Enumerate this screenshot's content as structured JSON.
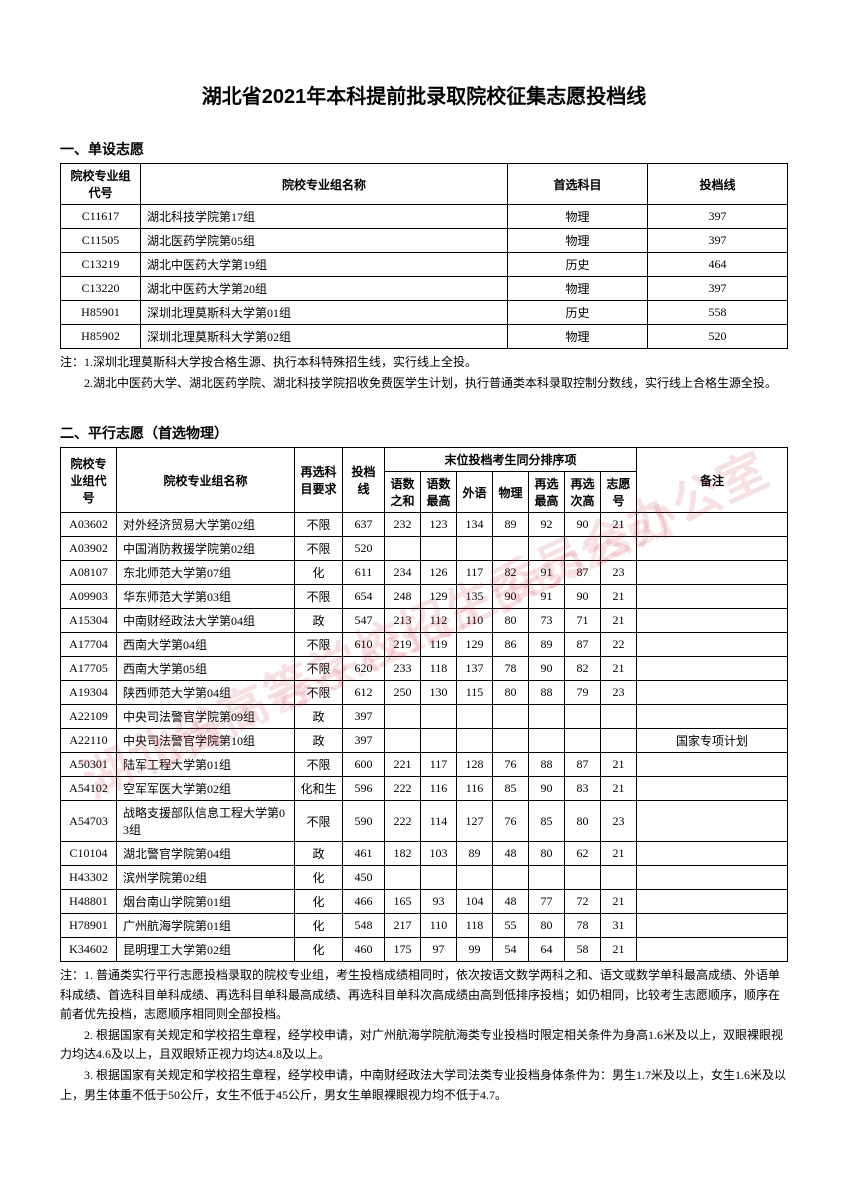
{
  "title": "湖北省2021年本科提前批录取院校征集志愿投档线",
  "watermark1": "湖北省高等学校招生委员会办公室",
  "watermark2": "网址 ：zsxx.e21.cn【HBSZSB】",
  "section1": {
    "heading": "一、单设志愿",
    "columns": [
      "院校专业组代号",
      "院校专业组名称",
      "首选科目",
      "投档线"
    ],
    "rows": [
      [
        "C11617",
        "湖北科技学院第17组",
        "物理",
        "397"
      ],
      [
        "C11505",
        "湖北医药学院第05组",
        "物理",
        "397"
      ],
      [
        "C13219",
        "湖北中医药大学第19组",
        "历史",
        "464"
      ],
      [
        "C13220",
        "湖北中医药大学第20组",
        "物理",
        "397"
      ],
      [
        "H85901",
        "深圳北理莫斯科大学第01组",
        "历史",
        "558"
      ],
      [
        "H85902",
        "深圳北理莫斯科大学第02组",
        "物理",
        "520"
      ]
    ],
    "note1": "注：1.深圳北理莫斯科大学按合格生源、执行本科特殊招生线，实行线上全投。",
    "note2": "2.湖北中医药大学、湖北医药学院、湖北科技学院招收免费医学生计划，执行普通类本科录取控制分数线，实行线上合格生源全投。"
  },
  "section2": {
    "heading": "二、平行志愿（首选物理）",
    "header_top": {
      "code": "院校专业组代号",
      "name": "院校专业组名称",
      "req": "再选科目要求",
      "score": "投档线",
      "rank_group": "末位投档考生同分排序项",
      "remark": "备注"
    },
    "header_sub": [
      "语数之和",
      "语数最高",
      "外语",
      "物理",
      "再选最高",
      "再选次高",
      "志愿号"
    ],
    "rows": [
      [
        "A03602",
        "对外经济贸易大学第02组",
        "不限",
        "637",
        "232",
        "123",
        "134",
        "89",
        "92",
        "90",
        "21",
        ""
      ],
      [
        "A03902",
        "中国消防救援学院第02组",
        "不限",
        "520",
        "",
        "",
        "",
        "",
        "",
        "",
        "",
        ""
      ],
      [
        "A08107",
        "东北师范大学第07组",
        "化",
        "611",
        "234",
        "126",
        "117",
        "82",
        "91",
        "87",
        "23",
        ""
      ],
      [
        "A09903",
        "华东师范大学第03组",
        "不限",
        "654",
        "248",
        "129",
        "135",
        "90",
        "91",
        "90",
        "21",
        ""
      ],
      [
        "A15304",
        "中南财经政法大学第04组",
        "政",
        "547",
        "213",
        "112",
        "110",
        "80",
        "73",
        "71",
        "21",
        ""
      ],
      [
        "A17704",
        "西南大学第04组",
        "不限",
        "610",
        "219",
        "119",
        "129",
        "86",
        "89",
        "87",
        "22",
        ""
      ],
      [
        "A17705",
        "西南大学第05组",
        "不限",
        "620",
        "233",
        "118",
        "137",
        "78",
        "90",
        "82",
        "21",
        ""
      ],
      [
        "A19304",
        "陕西师范大学第04组",
        "不限",
        "612",
        "250",
        "130",
        "115",
        "80",
        "88",
        "79",
        "23",
        ""
      ],
      [
        "A22109",
        "中央司法警官学院第09组",
        "政",
        "397",
        "",
        "",
        "",
        "",
        "",
        "",
        "",
        ""
      ],
      [
        "A22110",
        "中央司法警官学院第10组",
        "政",
        "397",
        "",
        "",
        "",
        "",
        "",
        "",
        "",
        "国家专项计划"
      ],
      [
        "A50301",
        "陆军工程大学第01组",
        "不限",
        "600",
        "221",
        "117",
        "128",
        "76",
        "88",
        "87",
        "21",
        ""
      ],
      [
        "A54102",
        "空军军医大学第02组",
        "化和生",
        "596",
        "222",
        "116",
        "116",
        "85",
        "90",
        "83",
        "21",
        ""
      ],
      [
        "A54703",
        "战略支援部队信息工程大学第03组",
        "不限",
        "590",
        "222",
        "114",
        "127",
        "76",
        "85",
        "80",
        "23",
        ""
      ],
      [
        "C10104",
        "湖北警官学院第04组",
        "政",
        "461",
        "182",
        "103",
        "89",
        "48",
        "80",
        "62",
        "21",
        ""
      ],
      [
        "H43302",
        "滨州学院第02组",
        "化",
        "450",
        "",
        "",
        "",
        "",
        "",
        "",
        "",
        ""
      ],
      [
        "H48801",
        "烟台南山学院第01组",
        "化",
        "466",
        "165",
        "93",
        "104",
        "48",
        "77",
        "72",
        "21",
        ""
      ],
      [
        "H78901",
        "广州航海学院第01组",
        "化",
        "548",
        "217",
        "110",
        "118",
        "55",
        "80",
        "78",
        "31",
        ""
      ],
      [
        "K34602",
        "昆明理工大学第02组",
        "化",
        "460",
        "175",
        "97",
        "99",
        "54",
        "64",
        "58",
        "21",
        ""
      ]
    ],
    "note1": "注：1. 普通类实行平行志愿投档录取的院校专业组，考生投档成绩相同时，依次按语文数学两科之和、语文或数学单科最高成绩、外语单科成绩、首选科目单科成绩、再选科目单科最高成绩、再选科目单科次高成绩由高到低排序投档；如仍相同，比较考生志愿顺序，顺序在前者优先投档，志愿顺序相同则全部投档。",
    "note2": "2. 根据国家有关规定和学校招生章程，经学校申请，对广州航海学院航海类专业投档时限定相关条件为身高1.6米及以上，双眼裸眼视力均达4.6及以上，且双眼矫正视力均达4.8及以上。",
    "note3": "3. 根据国家有关规定和学校招生章程，经学校申请，中南财经政法大学司法类专业投档身体条件为：男生1.7米及以上，女生1.6米及以上，男生体重不低于50公斤，女生不低于45公斤，男女生单眼裸眼视力均不低于4.7。"
  }
}
